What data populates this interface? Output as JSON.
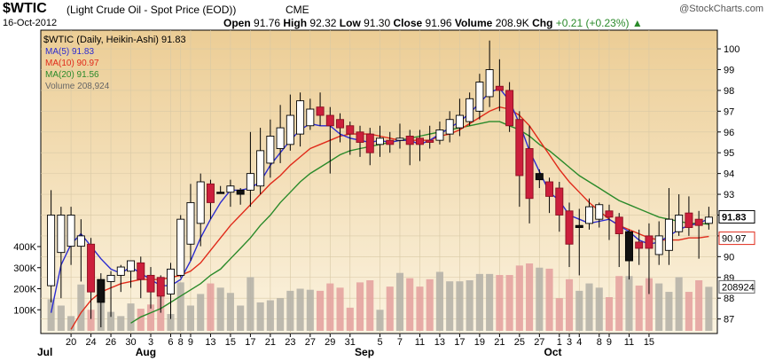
{
  "header": {
    "symbol": "$WTIC",
    "description": "(Light Crude Oil - Spot Price (EOD))",
    "exchange": "CME",
    "watermark": "@StockCharts.com",
    "date": "16-Oct-2012",
    "open_label": "Open",
    "open": "91.76",
    "high_label": "High",
    "high": "92.32",
    "low_label": "Low",
    "low": "91.30",
    "close_label": "Close",
    "close": "91.96",
    "volume_label": "Volume",
    "volume": "208.9K",
    "chg_label": "Chg",
    "chg": "+0.21 (+0.23%)"
  },
  "legend": {
    "main": "$WTIC (Daily, Heikin-Ashi) 91.83",
    "ma5": "MA(5) 91.83",
    "ma10": "MA(10) 90.97",
    "ma20": "MA(20) 91.56",
    "volume": "Volume 208,924"
  },
  "colors": {
    "ma5": "#2b2bd0",
    "ma10": "#e02a1a",
    "ma20": "#2a8a2a",
    "up_fill": "#ffffff",
    "down_fill": "#cc1f3c",
    "gray_fill": "#111111",
    "vol_up": "#b6b3a8",
    "vol_down": "#e4a3a0",
    "bg_top": "#eccd95",
    "bg_bottom": "#fbf3e0"
  },
  "chart_data": {
    "type": "candlestick",
    "title": "$WTIC (Light Crude Oil - Spot Price (EOD))",
    "y_ticks": [
      87,
      88,
      89,
      90,
      91,
      92,
      93,
      94,
      95,
      96,
      97,
      98,
      99,
      100
    ],
    "y_labels": [
      "87",
      "88",
      "89",
      "90",
      "91",
      "92",
      "93",
      "94",
      "95",
      "96",
      "97",
      "98",
      "99",
      "100"
    ],
    "price_ylim": [
      86.3,
      100.9
    ],
    "volume_ticks": [
      100000,
      200000,
      300000,
      400000
    ],
    "volume_labels": [
      "100K",
      "200K",
      "300K",
      "400K"
    ],
    "volume_ylim": [
      0,
      560000
    ],
    "x_day_labels": [
      "20",
      "24",
      "26",
      "30",
      "3",
      "6",
      "8",
      "9",
      "13",
      "15",
      "17",
      "21",
      "23",
      "27",
      "29",
      "31",
      "5",
      "7",
      "11",
      "13",
      "17",
      "19",
      "21",
      "25",
      "27",
      "1",
      "3",
      "4",
      "8",
      "9",
      "11",
      "15"
    ],
    "x_day_label_bars": [
      2,
      4,
      6,
      8,
      10,
      12,
      13,
      14,
      16,
      18,
      20,
      22,
      24,
      26,
      28,
      30,
      33,
      35,
      37,
      39,
      41,
      43,
      45,
      47,
      49,
      51,
      52,
      53,
      55,
      56,
      58,
      60
    ],
    "months": [
      {
        "label": "Jul",
        "bar": 0
      },
      {
        "label": "Aug",
        "bar": 9
      },
      {
        "label": "Sep",
        "bar": 31
      },
      {
        "label": "Oct",
        "bar": 50
      }
    ],
    "candles": [
      {
        "o": 88.6,
        "h": 93.2,
        "l": 87.8,
        "c": 92.0,
        "k": "u"
      },
      {
        "o": 90.2,
        "h": 92.4,
        "l": 88.0,
        "c": 92.0,
        "k": "u"
      },
      {
        "o": 92.0,
        "h": 92.4,
        "l": 89.6,
        "c": 90.5,
        "k": "u"
      },
      {
        "o": 90.5,
        "h": 91.8,
        "l": 88.8,
        "c": 91.0,
        "k": "u"
      },
      {
        "o": 90.6,
        "h": 90.9,
        "l": 87.0,
        "c": 88.3,
        "k": "d"
      },
      {
        "o": 87.8,
        "h": 89.2,
        "l": 86.6,
        "c": 88.9,
        "k": "g"
      },
      {
        "o": 88.8,
        "h": 89.3,
        "l": 87.1,
        "c": 89.1,
        "k": "u"
      },
      {
        "o": 89.1,
        "h": 89.6,
        "l": 88.3,
        "c": 89.5,
        "k": "u"
      },
      {
        "o": 89.3,
        "h": 89.8,
        "l": 88.5,
        "c": 89.8,
        "k": "u"
      },
      {
        "o": 89.7,
        "h": 90.0,
        "l": 88.0,
        "c": 88.9,
        "k": "d"
      },
      {
        "o": 89.1,
        "h": 89.5,
        "l": 87.5,
        "c": 88.3,
        "k": "d"
      },
      {
        "o": 89.0,
        "h": 89.1,
        "l": 87.3,
        "c": 88.1,
        "k": "d"
      },
      {
        "o": 88.2,
        "h": 89.7,
        "l": 87.0,
        "c": 89.4,
        "k": "u"
      },
      {
        "o": 89.1,
        "h": 92.0,
        "l": 89.0,
        "c": 91.8,
        "k": "u"
      },
      {
        "o": 90.6,
        "h": 93.5,
        "l": 89.8,
        "c": 92.6,
        "k": "u"
      },
      {
        "o": 91.6,
        "h": 94.0,
        "l": 90.5,
        "c": 93.6,
        "k": "u"
      },
      {
        "o": 93.5,
        "h": 93.7,
        "l": 91.8,
        "c": 92.6,
        "k": "d"
      },
      {
        "o": 93.1,
        "h": 93.4,
        "l": 93.1,
        "c": 93.1,
        "k": "g"
      },
      {
        "o": 93.1,
        "h": 93.7,
        "l": 92.4,
        "c": 93.4,
        "k": "u"
      },
      {
        "o": 93.0,
        "h": 93.3,
        "l": 92.5,
        "c": 93.2,
        "k": "g"
      },
      {
        "o": 93.2,
        "h": 96.0,
        "l": 92.4,
        "c": 94.0,
        "k": "u"
      },
      {
        "o": 93.4,
        "h": 96.2,
        "l": 93.0,
        "c": 95.1,
        "k": "u"
      },
      {
        "o": 94.5,
        "h": 96.6,
        "l": 93.8,
        "c": 95.8,
        "k": "u"
      },
      {
        "o": 95.2,
        "h": 97.3,
        "l": 94.5,
        "c": 96.2,
        "k": "u"
      },
      {
        "o": 95.4,
        "h": 97.8,
        "l": 95.1,
        "c": 96.8,
        "k": "u"
      },
      {
        "o": 95.9,
        "h": 97.9,
        "l": 95.3,
        "c": 97.5,
        "k": "u"
      },
      {
        "o": 96.3,
        "h": 97.6,
        "l": 96.1,
        "c": 97.1,
        "k": "u"
      },
      {
        "o": 97.2,
        "h": 97.9,
        "l": 96.3,
        "c": 96.8,
        "k": "d"
      },
      {
        "o": 96.8,
        "h": 97.2,
        "l": 94.0,
        "c": 96.3,
        "k": "d"
      },
      {
        "o": 96.6,
        "h": 96.9,
        "l": 95.5,
        "c": 96.2,
        "k": "d"
      },
      {
        "o": 96.3,
        "h": 96.5,
        "l": 94.9,
        "c": 95.9,
        "k": "d"
      },
      {
        "o": 96.0,
        "h": 96.3,
        "l": 94.8,
        "c": 95.5,
        "k": "d"
      },
      {
        "o": 95.9,
        "h": 96.2,
        "l": 94.4,
        "c": 95.0,
        "k": "d"
      },
      {
        "o": 95.4,
        "h": 96.3,
        "l": 94.8,
        "c": 95.7,
        "k": "u"
      },
      {
        "o": 95.6,
        "h": 96.0,
        "l": 95.0,
        "c": 95.4,
        "k": "d"
      },
      {
        "o": 95.6,
        "h": 96.4,
        "l": 95.2,
        "c": 95.7,
        "k": "u"
      },
      {
        "o": 95.8,
        "h": 96.1,
        "l": 94.4,
        "c": 95.4,
        "k": "d"
      },
      {
        "o": 95.7,
        "h": 96.1,
        "l": 94.6,
        "c": 95.4,
        "k": "d"
      },
      {
        "o": 95.5,
        "h": 96.3,
        "l": 95.2,
        "c": 95.6,
        "k": "d"
      },
      {
        "o": 95.6,
        "h": 96.5,
        "l": 95.4,
        "c": 96.1,
        "k": "u"
      },
      {
        "o": 95.9,
        "h": 97.0,
        "l": 95.5,
        "c": 96.6,
        "k": "u"
      },
      {
        "o": 96.2,
        "h": 97.6,
        "l": 95.8,
        "c": 96.8,
        "k": "u"
      },
      {
        "o": 96.5,
        "h": 97.9,
        "l": 96.3,
        "c": 97.6,
        "k": "u"
      },
      {
        "o": 97.0,
        "h": 98.8,
        "l": 96.6,
        "c": 98.4,
        "k": "u"
      },
      {
        "o": 97.7,
        "h": 100.4,
        "l": 97.2,
        "c": 99.0,
        "k": "u"
      },
      {
        "o": 98.2,
        "h": 99.5,
        "l": 97.0,
        "c": 98.0,
        "k": "d"
      },
      {
        "o": 98.0,
        "h": 98.4,
        "l": 96.0,
        "c": 96.3,
        "k": "d"
      },
      {
        "o": 96.6,
        "h": 97.0,
        "l": 92.4,
        "c": 93.9,
        "k": "d"
      },
      {
        "o": 95.2,
        "h": 96.3,
        "l": 91.6,
        "c": 92.8,
        "k": "d"
      },
      {
        "o": 94.0,
        "h": 94.2,
        "l": 93.3,
        "c": 93.7,
        "k": "g"
      },
      {
        "o": 93.6,
        "h": 93.8,
        "l": 92.1,
        "c": 92.9,
        "k": "d"
      },
      {
        "o": 93.3,
        "h": 93.6,
        "l": 91.2,
        "c": 92.0,
        "k": "d"
      },
      {
        "o": 92.2,
        "h": 92.6,
        "l": 89.5,
        "c": 90.6,
        "k": "d"
      },
      {
        "o": 91.4,
        "h": 92.3,
        "l": 89.1,
        "c": 91.5,
        "k": "g"
      },
      {
        "o": 91.6,
        "h": 92.8,
        "l": 91.3,
        "c": 92.4,
        "k": "u"
      },
      {
        "o": 91.8,
        "h": 92.6,
        "l": 91.4,
        "c": 92.5,
        "k": "u"
      },
      {
        "o": 92.2,
        "h": 92.5,
        "l": 90.8,
        "c": 91.9,
        "k": "d"
      },
      {
        "o": 91.9,
        "h": 92.1,
        "l": 89.5,
        "c": 91.1,
        "k": "d"
      },
      {
        "o": 91.2,
        "h": 91.3,
        "l": 88.9,
        "c": 89.8,
        "k": "g"
      },
      {
        "o": 90.7,
        "h": 91.3,
        "l": 89.6,
        "c": 90.4,
        "k": "d"
      },
      {
        "o": 90.4,
        "h": 91.6,
        "l": 88.2,
        "c": 91.0,
        "k": "d"
      },
      {
        "o": 90.1,
        "h": 91.7,
        "l": 89.6,
        "c": 91.0,
        "k": "u"
      },
      {
        "o": 90.3,
        "h": 93.3,
        "l": 89.6,
        "c": 91.8,
        "k": "u"
      },
      {
        "o": 91.2,
        "h": 93.0,
        "l": 91.0,
        "c": 92.0,
        "k": "u"
      },
      {
        "o": 91.4,
        "h": 92.9,
        "l": 91.0,
        "c": 92.1,
        "k": "d"
      },
      {
        "o": 91.8,
        "h": 92.2,
        "l": 89.9,
        "c": 91.5,
        "k": "d"
      },
      {
        "o": 91.6,
        "h": 92.4,
        "l": 91.3,
        "c": 91.9,
        "k": "u"
      }
    ],
    "volume": [
      150000,
      120000,
      70000,
      220000,
      100000,
      210000,
      90000,
      70000,
      130000,
      105000,
      125000,
      170000,
      80000,
      230000,
      120000,
      175000,
      225000,
      205000,
      180000,
      120000,
      255000,
      135000,
      145000,
      155000,
      190000,
      200000,
      195000,
      190000,
      225000,
      205000,
      110000,
      230000,
      240000,
      100000,
      210000,
      275000,
      250000,
      210000,
      245000,
      280000,
      235000,
      235000,
      240000,
      270000,
      270000,
      265000,
      265000,
      310000,
      320000,
      300000,
      295000,
      155000,
      245000,
      190000,
      225000,
      205000,
      160000,
      260000,
      260000,
      215000,
      250000,
      225000,
      185000,
      255000,
      185000,
      240000,
      208924
    ],
    "ma5": [
      87.3,
      89.6,
      90.6,
      91.1,
      90.5,
      89.9,
      89.4,
      89.2,
      89.5,
      89.2,
      88.9,
      88.6,
      88.6,
      88.9,
      89.8,
      90.9,
      91.8,
      92.6,
      93.2,
      93.2,
      93.3,
      93.6,
      94.4,
      95.0,
      95.6,
      96.1,
      96.4,
      96.3,
      96.3,
      95.9,
      95.7,
      95.6,
      95.5,
      95.6,
      95.5,
      95.6,
      95.6,
      95.4,
      95.6,
      95.9,
      96.2,
      96.5,
      96.9,
      97.4,
      97.9,
      98.1,
      97.5,
      96.4,
      95.1,
      94.1,
      93.1,
      92.7,
      92.0,
      91.8,
      91.6,
      91.7,
      91.8,
      91.5,
      91.2,
      90.8,
      90.6,
      90.7,
      91.0,
      91.3,
      91.5,
      91.6,
      91.83
    ],
    "ma10": [
      null,
      null,
      86.5,
      87.3,
      87.9,
      88.3,
      88.5,
      88.7,
      88.8,
      88.9,
      88.9,
      88.9,
      89.0,
      89.1,
      89.3,
      89.7,
      90.3,
      90.9,
      91.5,
      92.0,
      92.5,
      93.0,
      93.5,
      93.9,
      94.4,
      94.8,
      95.2,
      95.4,
      95.6,
      95.8,
      95.9,
      95.9,
      95.9,
      95.8,
      95.7,
      95.6,
      95.6,
      95.6,
      95.6,
      95.8,
      95.9,
      96.1,
      96.4,
      96.7,
      97.0,
      97.2,
      97.1,
      96.8,
      96.3,
      95.6,
      94.9,
      94.2,
      93.6,
      93.1,
      92.6,
      92.2,
      91.8,
      91.5,
      91.3,
      91.1,
      90.9,
      90.8,
      90.8,
      90.8,
      90.9,
      90.9,
      90.97
    ],
    "ma20": [
      null,
      null,
      null,
      null,
      null,
      null,
      null,
      null,
      86.8,
      87.1,
      87.3,
      87.5,
      87.8,
      88.1,
      88.4,
      88.7,
      89.1,
      89.4,
      89.9,
      90.4,
      90.9,
      91.5,
      92.0,
      92.6,
      93.1,
      93.6,
      94.0,
      94.3,
      94.6,
      94.9,
      95.1,
      95.2,
      95.3,
      95.4,
      95.5,
      95.6,
      95.7,
      95.8,
      95.9,
      96.0,
      96.1,
      96.2,
      96.3,
      96.4,
      96.5,
      96.5,
      96.3,
      96.1,
      95.8,
      95.4,
      95.1,
      94.7,
      94.3,
      93.9,
      93.6,
      93.3,
      93.0,
      92.7,
      92.5,
      92.3,
      92.1,
      91.9,
      91.8,
      91.7,
      91.6,
      91.6,
      91.56
    ],
    "last_labels": {
      "close": "91.83",
      "ma10": "90.97",
      "volume": "208924"
    }
  }
}
